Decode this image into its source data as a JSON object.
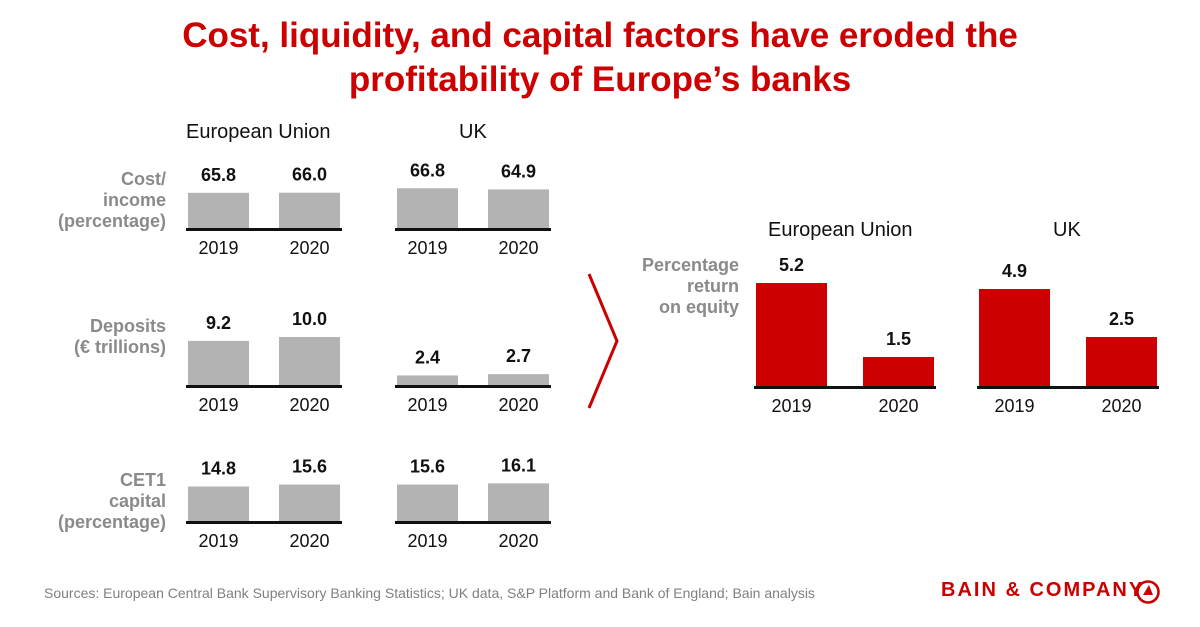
{
  "title": {
    "line1": "Cost, liquidity, and capital factors have eroded the",
    "line2": "profitability of Europe’s banks"
  },
  "left_panel": {
    "headers": {
      "eu": "European Union",
      "uk": "UK"
    },
    "row_labels": {
      "cost_income": [
        "Cost/",
        "income",
        "(percentage)"
      ],
      "deposits": [
        "Deposits",
        "(€ trillions)"
      ],
      "cet1": [
        "CET1",
        "capital",
        "(percentage)"
      ]
    }
  },
  "right_panel": {
    "headers": {
      "eu": "European Union",
      "uk": "UK"
    },
    "row_label": [
      "Percentage",
      "return",
      "on equity"
    ]
  },
  "colors": {
    "accent": "#cc0000",
    "bar_gray": "#b3b3b3",
    "label_gray": "#8a8a8a"
  },
  "chart_data": [
    {
      "type": "bar",
      "title": "Cost/income (percentage) — European Union",
      "categories": [
        "2019",
        "2020"
      ],
      "values": [
        65.8,
        66.0
      ],
      "labels": [
        "65.8",
        "66.0"
      ]
    },
    {
      "type": "bar",
      "title": "Cost/income (percentage) — UK",
      "categories": [
        "2019",
        "2020"
      ],
      "values": [
        66.8,
        64.9
      ],
      "labels": [
        "66.8",
        "64.9"
      ]
    },
    {
      "type": "bar",
      "title": "Deposits (€ trillions) — European Union",
      "categories": [
        "2019",
        "2020"
      ],
      "values": [
        9.2,
        10.0
      ],
      "labels": [
        "9.2",
        "10.0"
      ]
    },
    {
      "type": "bar",
      "title": "Deposits (€ trillions) — UK",
      "categories": [
        "2019",
        "2020"
      ],
      "values": [
        2.4,
        2.7
      ],
      "labels": [
        "2.4",
        "2.7"
      ]
    },
    {
      "type": "bar",
      "title": "CET1 capital (percentage) — European Union",
      "categories": [
        "2019",
        "2020"
      ],
      "values": [
        14.8,
        15.6
      ],
      "labels": [
        "14.8",
        "15.6"
      ]
    },
    {
      "type": "bar",
      "title": "CET1 capital (percentage) — UK",
      "categories": [
        "2019",
        "2020"
      ],
      "values": [
        15.6,
        16.1
      ],
      "labels": [
        "15.6",
        "16.1"
      ]
    },
    {
      "type": "bar",
      "title": "Percentage return on equity — European Union",
      "categories": [
        "2019",
        "2020"
      ],
      "values": [
        5.2,
        1.5
      ],
      "labels": [
        "5.2",
        "1.5"
      ]
    },
    {
      "type": "bar",
      "title": "Percentage return on equity — UK",
      "categories": [
        "2019",
        "2020"
      ],
      "values": [
        4.9,
        2.5
      ],
      "labels": [
        "4.9",
        "2.5"
      ]
    }
  ],
  "footer": {
    "source": "Sources: European Central Bank Supervisory Banking Statistics; UK data, S&P Platform and Bank of England; Bain analysis",
    "brand": "BAIN & COMPANY"
  }
}
